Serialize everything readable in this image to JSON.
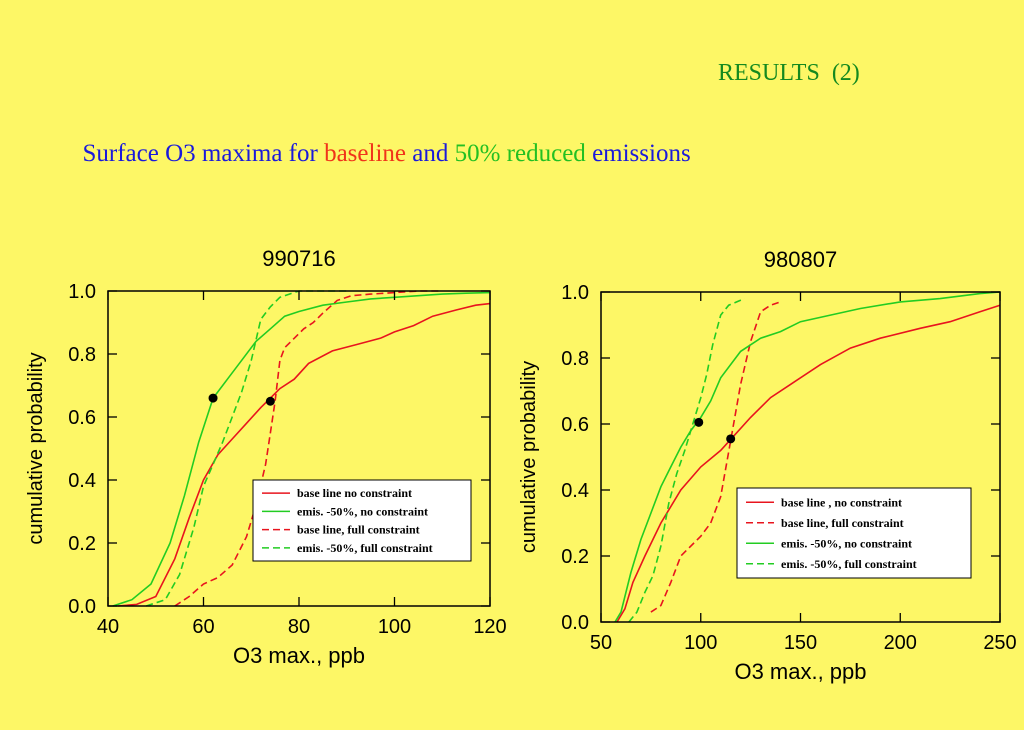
{
  "heading": "RESULTS  (2)",
  "subtitle": [
    {
      "text": "Surface O3 maxima for ",
      "color": "#1a1adb"
    },
    {
      "text": "baseline",
      "color": "#f0341a"
    },
    {
      "text": " and ",
      "color": "#1a1adb"
    },
    {
      "text": "50% reduced",
      "color": "#22c022"
    },
    {
      "text": " emissions",
      "color": "#1a1adb"
    }
  ],
  "chart_data": [
    {
      "type": "line",
      "title": "990716",
      "xlabel": "O3 max., ppb",
      "ylabel": "cumulative probability",
      "xlim": [
        40,
        120
      ],
      "ylim": [
        0,
        1
      ],
      "xticks": [
        "40",
        "60",
        "80",
        "100",
        "120"
      ],
      "yticks": [
        "0.0",
        "0.2",
        "0.4",
        "0.6",
        "0.8",
        "1.0"
      ],
      "legend_position": "lower-right",
      "series": [
        {
          "name": "base line no constraint",
          "color": "#e8141e",
          "dash": "solid",
          "x": [
            42,
            46,
            50,
            54,
            57,
            60,
            63,
            66,
            69,
            72,
            74,
            76,
            79,
            82,
            87,
            92,
            97,
            100,
            104,
            108,
            113,
            117,
            120
          ],
          "y": [
            0,
            0.005,
            0.03,
            0.15,
            0.28,
            0.4,
            0.48,
            0.53,
            0.58,
            0.63,
            0.66,
            0.69,
            0.72,
            0.77,
            0.81,
            0.83,
            0.85,
            0.87,
            0.89,
            0.92,
            0.94,
            0.955,
            0.96
          ]
        },
        {
          "name": "emis. -50%, no constraint",
          "color": "#22cc22",
          "dash": "solid",
          "x": [
            41,
            45,
            49,
            53,
            56,
            59,
            62,
            65,
            68,
            71,
            74,
            77,
            80,
            85,
            90,
            95,
            100,
            105,
            110,
            115,
            120
          ],
          "y": [
            0,
            0.02,
            0.07,
            0.2,
            0.35,
            0.52,
            0.66,
            0.72,
            0.78,
            0.84,
            0.88,
            0.92,
            0.935,
            0.955,
            0.965,
            0.975,
            0.98,
            0.985,
            0.99,
            0.993,
            0.995
          ]
        },
        {
          "name": "base line, full constraint",
          "color": "#e8141e",
          "dash": "dashed",
          "x": [
            54,
            57,
            60,
            63,
            66,
            69,
            71,
            73,
            74,
            75,
            76,
            77,
            79,
            81,
            83,
            85,
            88,
            91,
            95,
            100,
            105,
            110
          ],
          "y": [
            0,
            0.03,
            0.07,
            0.09,
            0.13,
            0.22,
            0.32,
            0.45,
            0.55,
            0.65,
            0.78,
            0.82,
            0.85,
            0.88,
            0.9,
            0.93,
            0.97,
            0.985,
            0.99,
            0.995,
            1,
            1
          ]
        },
        {
          "name": "emis. -50%, full constraint",
          "color": "#22cc22",
          "dash": "dashed",
          "x": [
            48,
            52,
            55,
            58,
            60,
            62,
            64,
            66,
            68,
            70,
            72,
            74,
            76,
            78,
            80,
            84,
            90
          ],
          "y": [
            0,
            0.02,
            0.1,
            0.25,
            0.38,
            0.45,
            0.52,
            0.6,
            0.68,
            0.78,
            0.91,
            0.95,
            0.98,
            0.99,
            1,
            1,
            1
          ]
        }
      ],
      "markers": [
        {
          "x": 62,
          "y": 0.66
        },
        {
          "x": 74,
          "y": 0.65
        }
      ]
    },
    {
      "type": "line",
      "title": "980807",
      "xlabel": "O3 max., ppb",
      "ylabel": "cumulative probability",
      "xlim": [
        50,
        250
      ],
      "ylim": [
        0,
        1
      ],
      "xticks": [
        "50",
        "100",
        "150",
        "200",
        "250"
      ],
      "yticks": [
        "0.0",
        "0.2",
        "0.4",
        "0.6",
        "0.8",
        "1.0"
      ],
      "legend_position": "lower-right",
      "series": [
        {
          "name": "base line , no constraint",
          "color": "#e8141e",
          "dash": "solid",
          "x": [
            58,
            62,
            66,
            72,
            80,
            90,
            100,
            110,
            116,
            125,
            135,
            145,
            160,
            175,
            190,
            210,
            225,
            240,
            250
          ],
          "y": [
            0,
            0.04,
            0.12,
            0.2,
            0.3,
            0.4,
            0.47,
            0.52,
            0.56,
            0.62,
            0.68,
            0.72,
            0.78,
            0.83,
            0.86,
            0.89,
            0.91,
            0.94,
            0.96
          ]
        },
        {
          "name": "base line, full constraint",
          "color": "#e8141e",
          "dash": "dashed",
          "x": [
            75,
            80,
            85,
            90,
            100,
            105,
            110,
            115,
            120,
            125,
            130,
            135,
            140
          ],
          "y": [
            0.03,
            0.05,
            0.12,
            0.2,
            0.26,
            0.3,
            0.38,
            0.55,
            0.72,
            0.85,
            0.94,
            0.96,
            0.97
          ]
        },
        {
          "name": "emis. -50%, no constraint",
          "color": "#22cc22",
          "dash": "solid",
          "x": [
            57,
            60,
            65,
            70,
            75,
            80,
            85,
            90,
            95,
            100,
            105,
            110,
            120,
            130,
            140,
            150,
            165,
            180,
            200,
            220,
            240,
            250
          ],
          "y": [
            0,
            0.03,
            0.15,
            0.25,
            0.33,
            0.41,
            0.47,
            0.53,
            0.58,
            0.62,
            0.67,
            0.74,
            0.82,
            0.86,
            0.88,
            0.91,
            0.93,
            0.95,
            0.97,
            0.98,
            0.995,
            1
          ]
        },
        {
          "name": "emis. -50%, full constraint",
          "color": "#22cc22",
          "dash": "dashed",
          "x": [
            64,
            68,
            72,
            76,
            80,
            84,
            88,
            92,
            96,
            100,
            103,
            106,
            110,
            114,
            118,
            122
          ],
          "y": [
            0,
            0.03,
            0.09,
            0.14,
            0.23,
            0.36,
            0.45,
            0.52,
            0.6,
            0.68,
            0.75,
            0.84,
            0.93,
            0.96,
            0.97,
            0.98
          ]
        }
      ],
      "markers": [
        {
          "x": 99,
          "y": 0.605
        },
        {
          "x": 115,
          "y": 0.555
        }
      ]
    }
  ]
}
